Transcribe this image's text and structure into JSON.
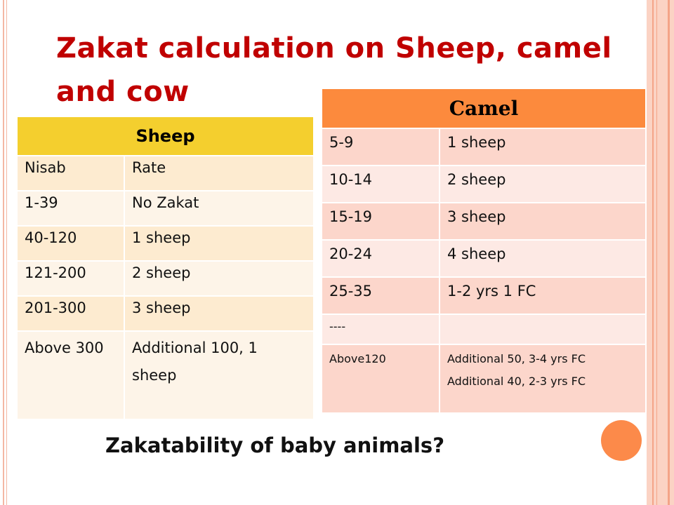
{
  "title": "Zakat calculation on Sheep, camel and cow",
  "sheep": {
    "header": "Sheep",
    "rows": [
      [
        "Nisab",
        "Rate"
      ],
      [
        "1-39",
        "No Zakat"
      ],
      [
        "40-120",
        "1 sheep"
      ],
      [
        "121-200",
        "2 sheep"
      ],
      [
        "201-300",
        "3 sheep"
      ],
      [
        "Above 300",
        "Additional 100, 1 sheep"
      ]
    ]
  },
  "camel": {
    "header": "Camel",
    "rows": [
      [
        "5-9",
        "1 sheep"
      ],
      [
        "10-14",
        "2 sheep"
      ],
      [
        "15-19",
        "3 sheep"
      ],
      [
        "20-24",
        "4 sheep"
      ],
      [
        "25-35",
        "1-2 yrs 1 FC"
      ],
      [
        "----",
        ""
      ],
      [
        "Above120",
        "Additional 50, 3-4 yrs FC"
      ]
    ],
    "extra_line": "Additional 40, 2-3 yrs FC"
  },
  "question": "Zakatability of baby animals?",
  "colors": {
    "title": "#c00000",
    "sheep_header": "#f4cf2e",
    "camel_header": "#fc8a3d",
    "accent_circle": "#fc8a4a"
  }
}
